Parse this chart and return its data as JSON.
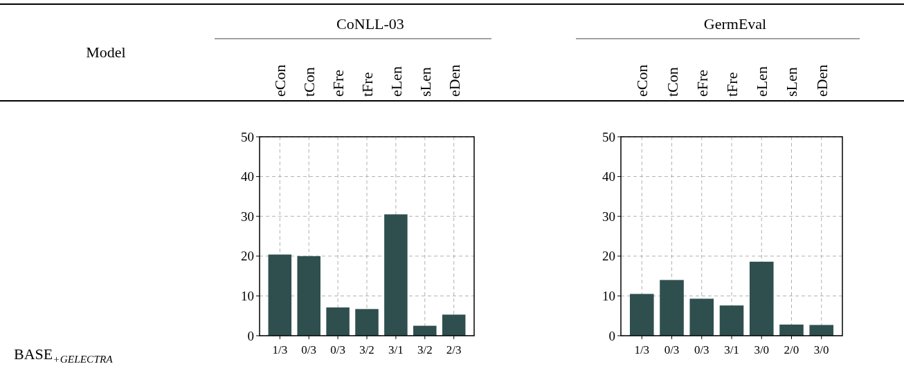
{
  "chart_data": [
    {
      "type": "bar",
      "title": "CoNLL-03",
      "categories": [
        "1/3",
        "0/3",
        "0/3",
        "3/2",
        "3/1",
        "3/2",
        "2/3"
      ],
      "values": [
        20.4,
        20.0,
        7.1,
        6.7,
        30.5,
        2.5,
        5.3
      ],
      "color": "#2f4f4f",
      "ylim": [
        0,
        50
      ],
      "yticks": [
        0,
        10,
        20,
        30,
        40,
        50
      ],
      "grid": true,
      "annotations": [
        "eCon",
        "tCon",
        "eFre",
        "tFre",
        "eLen",
        "sLen",
        "eDen",
        "Model",
        "BASE$_{+GELECTRA}$"
      ]
    },
    {
      "type": "bar",
      "title": "GermEval",
      "categories": [
        "1/3",
        "0/3",
        "0/3",
        "3/1",
        "3/0",
        "2/0",
        "3/0"
      ],
      "values": [
        10.5,
        14.0,
        9.3,
        7.6,
        18.6,
        2.8,
        2.7
      ],
      "color": "#2f4f4f",
      "ylim": [
        0,
        50
      ],
      "yticks": [
        0,
        10,
        20,
        30,
        40,
        50
      ],
      "grid": true,
      "annotations": [
        "eCon",
        "tCon",
        "eFre",
        "tFre",
        "eLen",
        "sLen",
        "eDen"
      ]
    }
  ]
}
